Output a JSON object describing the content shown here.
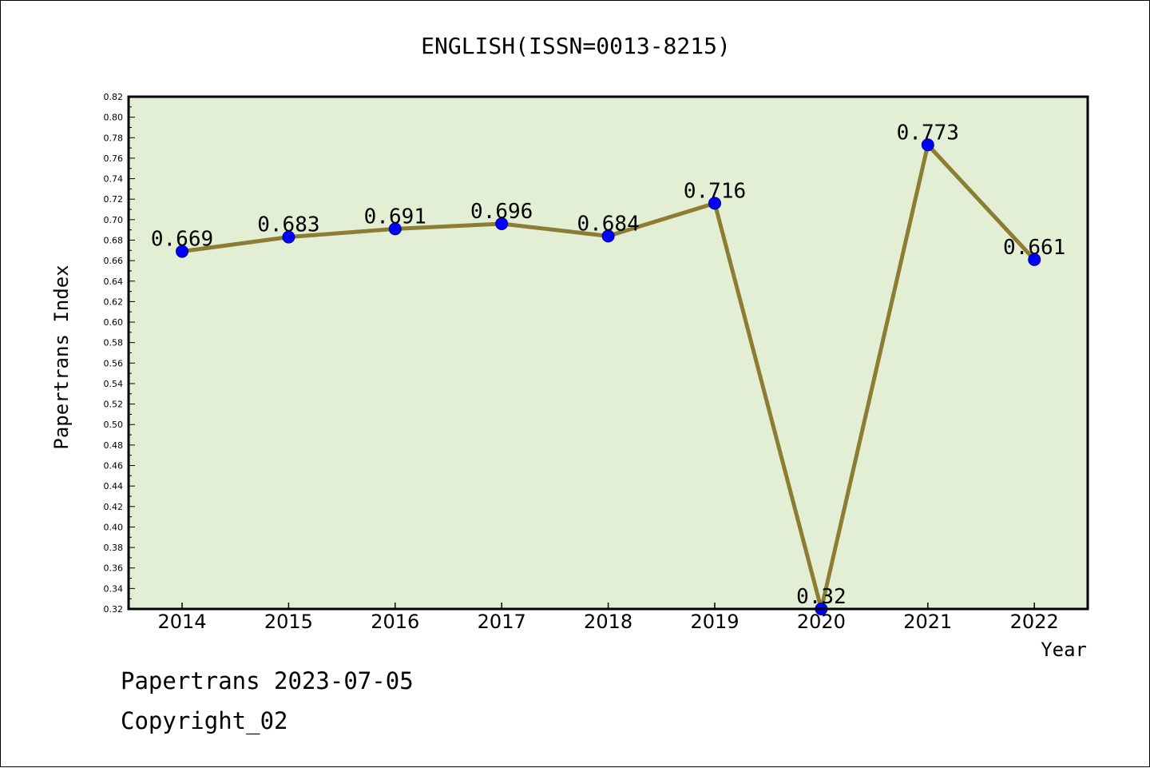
{
  "chart_data": {
    "type": "line",
    "title": "ENGLISH(ISSN=0013-8215)",
    "xlabel": "Year",
    "ylabel": "Papertrans Index",
    "categories": [
      "2014",
      "2015",
      "2016",
      "2017",
      "2018",
      "2019",
      "2020",
      "2021",
      "2022"
    ],
    "series": [
      {
        "name": "Papertrans Index",
        "values": [
          0.669,
          0.683,
          0.691,
          0.696,
          0.684,
          0.716,
          0.32,
          0.773,
          0.661
        ],
        "labels": [
          "0.669",
          "0.683",
          "0.691",
          "0.696",
          "0.684",
          "0.716",
          "0.32",
          "0.773",
          "0.661"
        ]
      }
    ],
    "ylim": [
      0.32,
      0.82
    ],
    "ytick_step": 0.02,
    "ytick_labels": [
      "0.32",
      "0.34",
      "0.36",
      "0.38",
      "0.40",
      "0.42",
      "0.44",
      "0.46",
      "0.48",
      "0.50",
      "0.52",
      "0.54",
      "0.56",
      "0.58",
      "0.60",
      "0.62",
      "0.64",
      "0.66",
      "0.68",
      "0.70",
      "0.72",
      "0.74",
      "0.76",
      "0.78",
      "0.80",
      "0.82"
    ],
    "grid": false,
    "colors": {
      "plot_background": "#e2efd4",
      "line": "#8b7d33",
      "marker": "#0000ff"
    }
  },
  "footer": {
    "line1": "Papertrans 2023-07-05",
    "line2": "Copyright_02"
  }
}
